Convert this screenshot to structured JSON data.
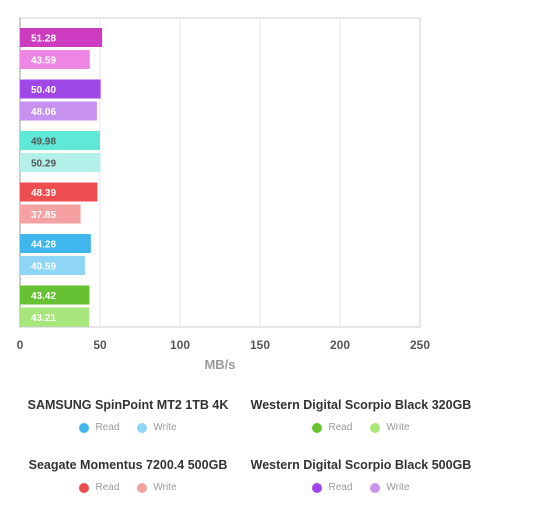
{
  "chart_data": {
    "type": "bar",
    "orientation": "horizontal",
    "xlabel": "MB/s",
    "xlim": [
      0,
      250
    ],
    "xticks": [
      0,
      50,
      100,
      150,
      200,
      250
    ],
    "grid": true,
    "legend_position": "bottom",
    "groups": [
      {
        "name": "Western Digital Scorpio Black 500GB",
        "read": 51.28,
        "write": 43.59,
        "read_color": "#cd3bc0",
        "write_color": "#ee86e3"
      },
      {
        "name": "Western Digital Scorpio Black 500GB",
        "read": 50.4,
        "write": 48.06,
        "read_color": "#a047e8",
        "write_color": "#c791ef"
      },
      {
        "name": "",
        "read": 49.98,
        "write": 50.29,
        "read_color": "#5fe8d8",
        "write_color": "#b4f0ea"
      },
      {
        "name": "Seagate Momentus 7200.4 500GB",
        "read": 48.39,
        "write": 37.85,
        "read_color": "#ee4d50",
        "write_color": "#f5a1a2"
      },
      {
        "name": "SAMSUNG SpinPoint MT2 1TB 4K",
        "read": 44.28,
        "write": 40.59,
        "read_color": "#3fb6ec",
        "write_color": "#8fd6f6"
      },
      {
        "name": "Western Digital Scorpio Black 320GB",
        "read": 43.42,
        "write": 43.21,
        "read_color": "#67c233",
        "write_color": "#a6e67a"
      }
    ]
  },
  "legend": [
    {
      "title": "SAMSUNG SpinPoint MT2 1TB 4K",
      "read_label": "Read",
      "write_label": "Write",
      "read_color": "#3fb6ec",
      "write_color": "#8fd6f6"
    },
    {
      "title": "Western Digital Scorpio Black 320GB",
      "read_label": "Read",
      "write_label": "Write",
      "read_color": "#67c233",
      "write_color": "#a6e67a"
    },
    {
      "title": "Seagate Momentus 7200.4 500GB",
      "read_label": "Read",
      "write_label": "Write",
      "read_color": "#ee4d50",
      "write_color": "#f5a1a2"
    },
    {
      "title": "Western Digital Scorpio Black 500GB",
      "read_label": "Read",
      "write_label": "Write",
      "read_color": "#a047e8",
      "write_color": "#c791ef"
    }
  ]
}
